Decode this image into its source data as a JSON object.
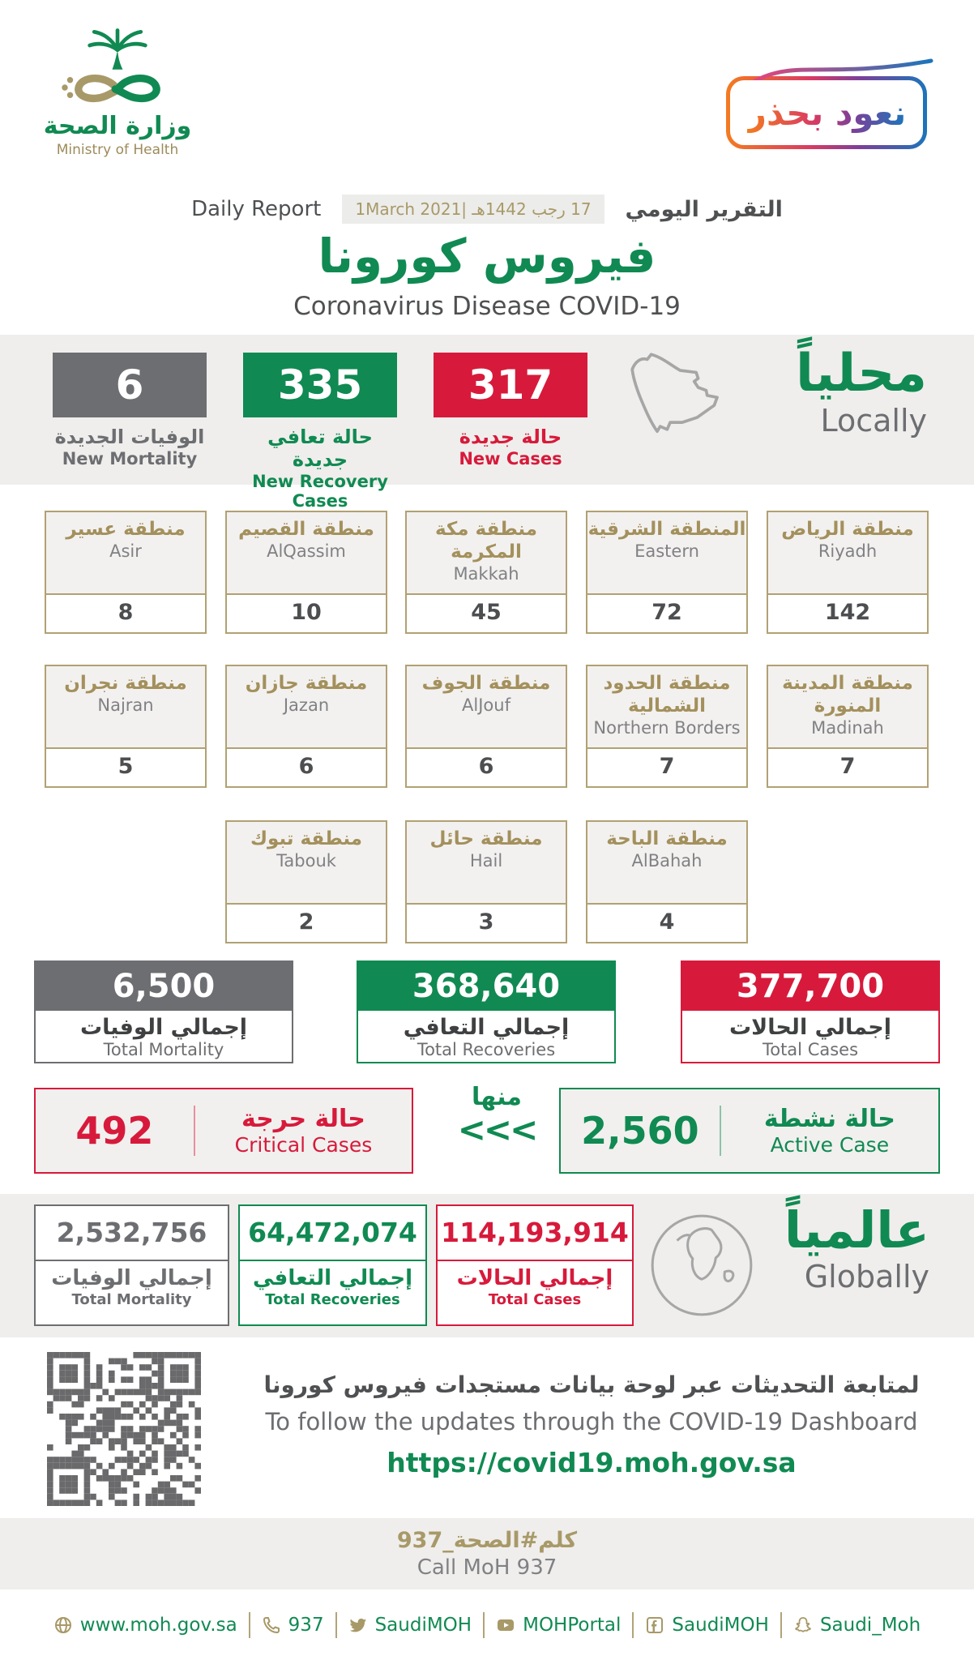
{
  "colors": {
    "green": "#108a52",
    "red": "#d71a3b",
    "gray": "#6d6e71",
    "gold": "#a89968"
  },
  "header": {
    "logo_title_ar": "وزارة الصحة",
    "logo_title_en": "Ministry of Health",
    "badge_ar": "نعود بحذر",
    "report_label_en": "Daily Report",
    "report_label_ar": "التقرير اليومي",
    "date": "17 رجب 1442هـ |1March 2021",
    "title_ar": "فيروس كورونا",
    "title_en": "Coronavirus Disease COVID-19"
  },
  "locally": {
    "heading_ar": "محلياً",
    "heading_en": "Locally",
    "stats": [
      {
        "id": "new-mortality",
        "value": "6",
        "label_ar": "الوفيات الجديدة",
        "label_en": "New Mortality",
        "color": "#6d6e71"
      },
      {
        "id": "new-recovery",
        "value": "335",
        "label_ar": "حالة تعافي جديدة",
        "label_en": "New Recovery Cases",
        "color": "#108a52"
      },
      {
        "id": "new-cases",
        "value": "317",
        "label_ar": "حالة جديدة",
        "label_en": "New Cases",
        "color": "#d71a3b"
      }
    ]
  },
  "regions": {
    "rows": [
      [
        {
          "name_ar": "منطقة عسير",
          "name_en": "Asir",
          "value": "8"
        },
        {
          "name_ar": "منطقة القصيم",
          "name_en": "AlQassim",
          "value": "10"
        },
        {
          "name_ar": "منطقة مكة المكرمة",
          "name_en": "Makkah",
          "value": "45"
        },
        {
          "name_ar": "المنطقة الشرقية",
          "name_en": "Eastern",
          "value": "72"
        },
        {
          "name_ar": "منطقة الرياض",
          "name_en": "Riyadh",
          "value": "142"
        }
      ],
      [
        {
          "name_ar": "منطقة نجران",
          "name_en": "Najran",
          "value": "5"
        },
        {
          "name_ar": "منطقة جازان",
          "name_en": "Jazan",
          "value": "6"
        },
        {
          "name_ar": "منطقة الجوف",
          "name_en": "AlJouf",
          "value": "6"
        },
        {
          "name_ar": "منطقة الحدود الشمالية",
          "name_en": "Northern Borders",
          "value": "7"
        },
        {
          "name_ar": "منطقة المدينة المنورة",
          "name_en": "Madinah",
          "value": "7"
        }
      ],
      [
        {
          "name_ar": "منطقة تبوك",
          "name_en": "Tabouk",
          "value": "2"
        },
        {
          "name_ar": "منطقة حائل",
          "name_en": "Hail",
          "value": "3"
        },
        {
          "name_ar": "منطقة الباحة",
          "name_en": "AlBahah",
          "value": "4"
        }
      ]
    ]
  },
  "totals": [
    {
      "id": "total-mortality",
      "value": "6,500",
      "label_ar": "إجمالي الوفيات",
      "label_en": "Total Mortality",
      "color": "#6d6e71"
    },
    {
      "id": "total-recoveries",
      "value": "368,640",
      "label_ar": "إجمالي التعافي",
      "label_en": "Total Recoveries",
      "color": "#108a52"
    },
    {
      "id": "total-cases",
      "value": "377,700",
      "label_ar": "إجمالي الحالات",
      "label_en": "Total Cases",
      "color": "#d71a3b"
    }
  ],
  "breakdown": {
    "critical": {
      "value": "492",
      "label_ar": "حالة حرجة",
      "label_en": "Critical Cases",
      "color": "#d71a3b"
    },
    "of_which_ar": "منها",
    "arrows": "<<<",
    "active": {
      "value": "2,560",
      "label_ar": "حالة نشطة",
      "label_en": "Active Case",
      "color": "#108a52"
    }
  },
  "globally": {
    "heading_ar": "عالمياً",
    "heading_en": "Globally",
    "stats": [
      {
        "id": "global-mortality",
        "value": "2,532,756",
        "label_ar": "إجمالي الوفيات",
        "label_en": "Total Mortality",
        "color": "#6d6e71"
      },
      {
        "id": "global-recoveries",
        "value": "64,472,074",
        "label_ar": "إجمالي التعافي",
        "label_en": "Total Recoveries",
        "color": "#108a52"
      },
      {
        "id": "global-cases",
        "value": "114,193,914",
        "label_ar": "إجمالي الحالات",
        "label_en": "Total Cases",
        "color": "#d71a3b"
      }
    ]
  },
  "dashboard": {
    "line_ar": "لمتابعة التحديثات عبر لوحة بيانات مستجدات فيروس كورونا",
    "line_en": "To follow the updates through the COVID-19 Dashboard",
    "url": "https://covid19.moh.gov.sa"
  },
  "call": {
    "line_ar": "كلم#الصحة_937",
    "line_en": "Call MoH 937"
  },
  "footer": {
    "items": [
      {
        "icon": "globe",
        "text": "www.moh.gov.sa"
      },
      {
        "icon": "phone",
        "text": "937"
      },
      {
        "icon": "twitter",
        "text": "SaudiMOH"
      },
      {
        "icon": "youtube",
        "text": "MOHPortal"
      },
      {
        "icon": "facebook",
        "text": "SaudiMOH"
      },
      {
        "icon": "snapchat",
        "text": "Saudi_Moh"
      }
    ]
  }
}
